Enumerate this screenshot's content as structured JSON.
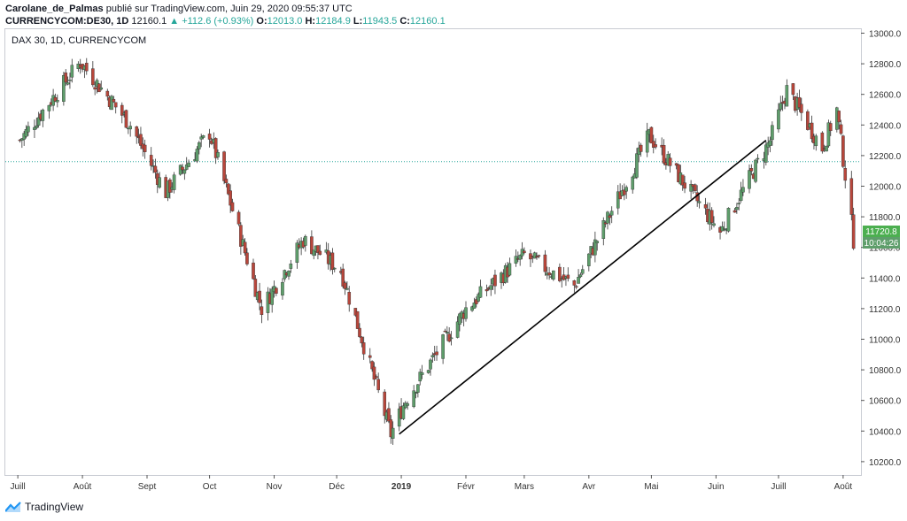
{
  "header": {
    "author": "Carolane_de_Palmas",
    "published": "publié sur TradingView.com, Juin 29, 2020 09:55:37 UTC",
    "symbol": "CURRENCYCOM:DE30, 1D",
    "last": "12160.1",
    "change_arrow": "▲",
    "change": "+112.6 (+0.93%)",
    "o_label": "O:",
    "o_val": "12013.0",
    "h_label": "H:",
    "h_val": "12184.9",
    "l_label": "L:",
    "l_val": "11943.5",
    "c_label": "C:",
    "c_val": "12160.1"
  },
  "chart_label": "DAX 30, 1D, CURRENCYCOM",
  "footer": {
    "brand": "TradingView",
    "logo_icon": "tradingview-logo-icon"
  },
  "colors": {
    "up": "#26a69a",
    "up_fill": "#5e9e6b",
    "down": "#b8463b",
    "grid_line": "#26a69a",
    "label_green": "#4caf50",
    "label_dark": "#5e9e6b"
  },
  "chart_data": {
    "type": "candlestick",
    "title": "DAX 30, 1D, CURRENCYCOM",
    "ylim": [
      10100,
      13050
    ],
    "y_ticks": [
      10200,
      10400,
      10600,
      10800,
      11000,
      11200,
      11400,
      11600,
      11800,
      12000,
      12200,
      12400,
      12600,
      12800,
      13000
    ],
    "x_ticks": [
      "Juill",
      "Août",
      "Sept",
      "Oct",
      "Nov",
      "Déc",
      "2019",
      "Févr",
      "Mars",
      "Avr",
      "Mai",
      "Juin",
      "Juill",
      "Août"
    ],
    "current_price_line": 12160.1,
    "price_label": "11720.8",
    "time_label": "10:04:26",
    "key_points": [
      {
        "date": "2018-07-02",
        "close": 12300
      },
      {
        "date": "2018-07-31",
        "close": 12810
      },
      {
        "date": "2018-08-24",
        "close": 12400
      },
      {
        "date": "2018-09-10",
        "close": 11960
      },
      {
        "date": "2018-10-01",
        "close": 12350
      },
      {
        "date": "2018-10-26",
        "close": 11200
      },
      {
        "date": "2018-11-15",
        "close": 11650
      },
      {
        "date": "2018-12-03",
        "close": 11450
      },
      {
        "date": "2018-12-27",
        "close": 10380
      },
      {
        "date": "2019-01-03",
        "close": 10600
      },
      {
        "date": "2019-02-01",
        "close": 11200
      },
      {
        "date": "2019-03-01",
        "close": 11550
      },
      {
        "date": "2019-03-25",
        "close": 11350
      },
      {
        "date": "2019-04-30",
        "close": 12330
      },
      {
        "date": "2019-05-15",
        "close": 12050
      },
      {
        "date": "2019-06-03",
        "close": 11700
      },
      {
        "date": "2019-06-27",
        "close": 12300
      },
      {
        "date": "2019-07-05",
        "close": 12630
      },
      {
        "date": "2019-07-22",
        "close": 12250
      },
      {
        "date": "2019-07-29",
        "close": 12500
      },
      {
        "date": "2019-08-06",
        "close": 11650
      }
    ],
    "trendline": [
      {
        "date": "2018-12-31",
        "value": 10380
      },
      {
        "date": "2019-06-25",
        "value": 12300
      }
    ]
  }
}
